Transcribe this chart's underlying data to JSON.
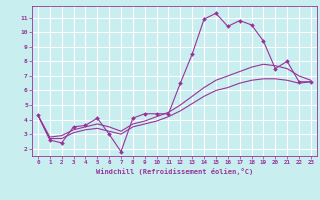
{
  "xlabel": "Windchill (Refroidissement éolien,°C)",
  "background_color": "#c8eef0",
  "grid_color": "#ffffff",
  "line_color": "#993399",
  "xlim": [
    -0.5,
    23.5
  ],
  "ylim": [
    1.5,
    11.8
  ],
  "xticks": [
    0,
    1,
    2,
    3,
    4,
    5,
    6,
    7,
    8,
    9,
    10,
    11,
    12,
    13,
    14,
    15,
    16,
    17,
    18,
    19,
    20,
    21,
    22,
    23
  ],
  "yticks": [
    2,
    3,
    4,
    5,
    6,
    7,
    8,
    9,
    10,
    11
  ],
  "series1_x": [
    0,
    1,
    2,
    3,
    4,
    5,
    6,
    7,
    8,
    9,
    10,
    11,
    12,
    13,
    14,
    15,
    16,
    17,
    18,
    19,
    20,
    21,
    22,
    23
  ],
  "series1_y": [
    4.3,
    2.6,
    2.4,
    3.5,
    3.6,
    4.1,
    3.0,
    1.8,
    4.1,
    4.4,
    4.4,
    4.4,
    6.5,
    8.5,
    10.9,
    11.3,
    10.4,
    10.8,
    10.5,
    9.4,
    7.5,
    8.0,
    6.6,
    6.6
  ],
  "series3_x": [
    0,
    1,
    2,
    3,
    4,
    5,
    6,
    7,
    8,
    9,
    10,
    11,
    12,
    13,
    14,
    15,
    16,
    17,
    18,
    19,
    20,
    21,
    22,
    23
  ],
  "series3_y": [
    4.3,
    2.8,
    2.9,
    3.3,
    3.5,
    3.7,
    3.5,
    3.2,
    3.7,
    3.9,
    4.2,
    4.5,
    5.0,
    5.6,
    6.2,
    6.7,
    7.0,
    7.3,
    7.6,
    7.8,
    7.7,
    7.5,
    7.0,
    6.7
  ],
  "series4_x": [
    0,
    1,
    2,
    3,
    4,
    5,
    6,
    7,
    8,
    9,
    10,
    11,
    12,
    13,
    14,
    15,
    16,
    17,
    18,
    19,
    20,
    21,
    22,
    23
  ],
  "series4_y": [
    4.3,
    2.7,
    2.7,
    3.1,
    3.3,
    3.4,
    3.2,
    3.0,
    3.5,
    3.7,
    3.9,
    4.2,
    4.6,
    5.1,
    5.6,
    6.0,
    6.2,
    6.5,
    6.7,
    6.8,
    6.8,
    6.7,
    6.5,
    6.6
  ]
}
